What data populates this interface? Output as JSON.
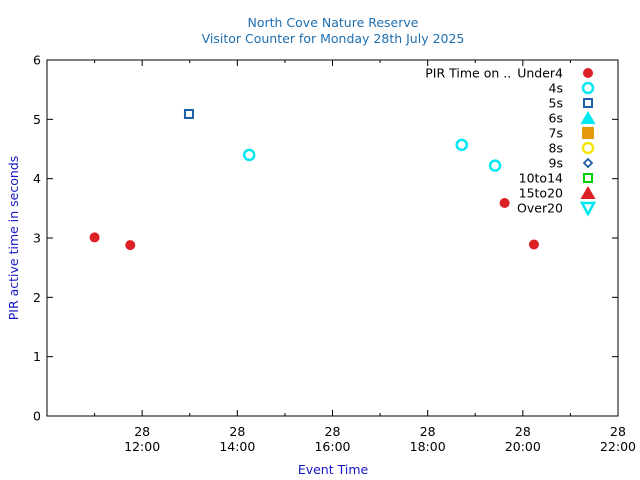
{
  "chart_data": {
    "type": "scatter",
    "title": "North Cove Nature Reserve",
    "subtitle": "Visitor Counter for Monday 28th July 2025",
    "xlabel": "Event Time",
    "ylabel": "PIR active time in seconds",
    "xlim": [
      "2025-07-28 10:00",
      "2025-07-28 22:00"
    ],
    "ylim": [
      0,
      6
    ],
    "yticks": [
      0,
      1,
      2,
      3,
      4,
      5,
      6
    ],
    "xticks": [
      {
        "time": "2025-07-28 12:00",
        "day": "28",
        "clock": "12:00"
      },
      {
        "time": "2025-07-28 14:00",
        "day": "28",
        "clock": "14:00"
      },
      {
        "time": "2025-07-28 16:00",
        "day": "28",
        "clock": "16:00"
      },
      {
        "time": "2025-07-28 18:00",
        "day": "28",
        "clock": "18:00"
      },
      {
        "time": "2025-07-28 20:00",
        "day": "28",
        "clock": "20:00"
      },
      {
        "time": "2025-07-28 22:00",
        "day": "28",
        "clock": "22:00"
      }
    ],
    "grid": false,
    "legend_position": "top-right",
    "legend_title": "PIR Time on ..",
    "series": [
      {
        "name": "Under4",
        "marker": "circle-filled",
        "color": "#dd1f26",
        "points": [
          {
            "x": "2025-07-28 11:00",
            "y": 3.01
          },
          {
            "x": "2025-07-28 11:45",
            "y": 2.88
          },
          {
            "x": "2025-07-28 19:37",
            "y": 3.59
          },
          {
            "x": "2025-07-28 20:14",
            "y": 2.89
          }
        ]
      },
      {
        "name": "4s",
        "marker": "circle-open",
        "color": "#00e8f0",
        "points": [
          {
            "x": "2025-07-28 14:15",
            "y": 4.4
          },
          {
            "x": "2025-07-28 18:43",
            "y": 4.57
          },
          {
            "x": "2025-07-28 19:25",
            "y": 4.22
          }
        ]
      },
      {
        "name": "5s",
        "marker": "square-open",
        "color": "#1a5fa8",
        "points": [
          {
            "x": "2025-07-28 12:59",
            "y": 5.09
          }
        ]
      },
      {
        "name": "6s",
        "marker": "triangle-filled",
        "color": "#00e8f0",
        "points": []
      },
      {
        "name": "7s",
        "marker": "square-filled",
        "color": "#e69a0b",
        "points": []
      },
      {
        "name": "8s",
        "marker": "circle-open",
        "color": "#f2e600",
        "points": []
      },
      {
        "name": "9s",
        "marker": "diamond-open",
        "color": "#1a5fa8",
        "points": []
      },
      {
        "name": "10to14",
        "marker": "square-open",
        "color": "#00d000",
        "points": []
      },
      {
        "name": "15to20",
        "marker": "triangle-filled",
        "color": "#dd1f26",
        "points": []
      },
      {
        "name": "Over20",
        "marker": "triangle-down-open",
        "color": "#00e8f0",
        "points": []
      }
    ]
  }
}
